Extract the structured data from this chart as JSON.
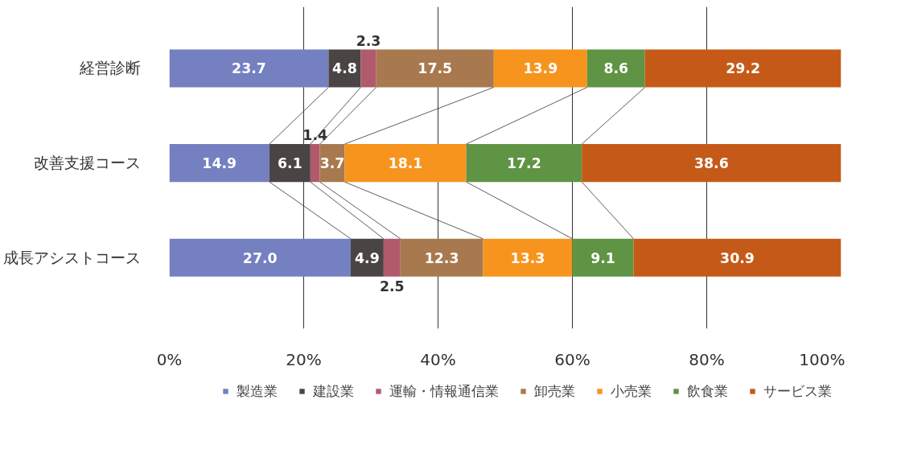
{
  "chart_data": {
    "type": "bar",
    "orientation": "horizontal",
    "stacked": true,
    "categories": [
      "経営診断",
      "改善支援コース",
      "成長アシストコース"
    ],
    "series": [
      {
        "name": "製造業",
        "color": "#7480c0",
        "values": [
          23.7,
          14.9,
          27.0
        ],
        "value_labels": [
          "23.7",
          "14.9",
          "27.0"
        ]
      },
      {
        "name": "建設業",
        "color": "#4a4544",
        "values": [
          4.8,
          6.1,
          4.9
        ],
        "value_labels": [
          "4.8",
          "6.1",
          "4.9"
        ]
      },
      {
        "name": "運輸・情報通信業",
        "color": "#b05a6c",
        "values": [
          2.3,
          1.4,
          2.5
        ],
        "value_labels": [
          "2.3",
          "1.4",
          "2.5"
        ]
      },
      {
        "name": "卸売業",
        "color": "#a8794e",
        "values": [
          17.5,
          3.7,
          12.3
        ],
        "value_labels": [
          "17.5",
          "3.7",
          "12.3"
        ]
      },
      {
        "name": "小売業",
        "color": "#f7941d",
        "values": [
          13.9,
          18.1,
          13.3
        ],
        "value_labels": [
          "13.9",
          "18.1",
          "13.3"
        ]
      },
      {
        "name": "飲食業",
        "color": "#5e9444",
        "values": [
          8.6,
          17.2,
          9.1
        ],
        "value_labels": [
          "8.6",
          "17.2",
          "9.1"
        ]
      },
      {
        "name": "サービス業",
        "color": "#c55a18",
        "values": [
          29.2,
          38.6,
          30.9
        ],
        "value_labels": [
          "29.2",
          "38.6",
          "30.9"
        ]
      }
    ],
    "xlim": [
      0,
      100
    ],
    "xticks": [
      {
        "value": 0,
        "label": "0%"
      },
      {
        "value": 20,
        "label": "20%"
      },
      {
        "value": 40,
        "label": "40%"
      },
      {
        "value": 60,
        "label": "60%"
      },
      {
        "value": 80,
        "label": "80%"
      },
      {
        "value": 100,
        "label": "100%"
      }
    ],
    "grid": "x",
    "legend": "bottom"
  }
}
